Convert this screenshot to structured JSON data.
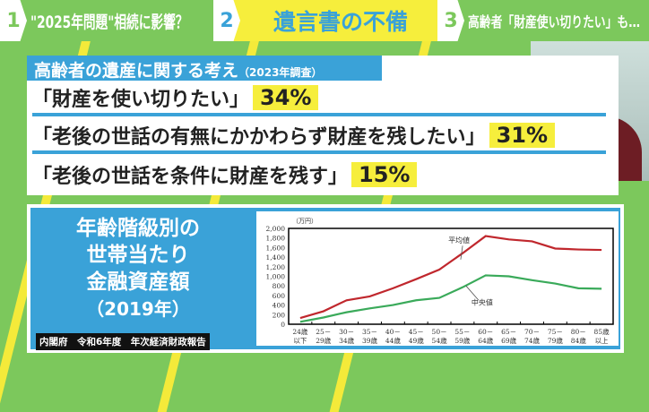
{
  "tabs": [
    {
      "num": "1",
      "label": "\"2025年問題\"相続に影響？"
    },
    {
      "num": "2",
      "label": "遺言書の不備"
    },
    {
      "num": "3",
      "label": "高齢者「財産使い切りたい」も…"
    }
  ],
  "survey": {
    "title": "高齢者の遺産に関する考え",
    "year": "（2023年調査）",
    "items": [
      {
        "text": "「財産を使い切りたい」",
        "pct": "34%"
      },
      {
        "text": "「老後の世話の有無にかかわらず財産を残したい」",
        "pct": "31%"
      },
      {
        "text": "「老後の世話を条件に財産を残す」",
        "pct": "15%"
      }
    ]
  },
  "chart_panel": {
    "title_lines": [
      "年齢階級別の",
      "世帯当たり",
      "金融資産額"
    ],
    "year": "（2019年）",
    "source": "内閣府　令和6年度　年次経済財政報告"
  },
  "colors": {
    "green": "#7cc85c",
    "blue": "#3aa2d8",
    "yellow": "#f6ee3c",
    "mean": "#c0272d",
    "median": "#3aaa5a"
  },
  "chart_data": {
    "type": "line",
    "unit": "（万円）",
    "categories": [
      [
        "24歳",
        "以下"
      ],
      [
        "25－",
        "29歳"
      ],
      [
        "30－",
        "34歳"
      ],
      [
        "35－",
        "39歳"
      ],
      [
        "40－",
        "44歳"
      ],
      [
        "45－",
        "49歳"
      ],
      [
        "50－",
        "54歳"
      ],
      [
        "55－",
        "59歳"
      ],
      [
        "60－",
        "64歳"
      ],
      [
        "65－",
        "69歳"
      ],
      [
        "70－",
        "74歳"
      ],
      [
        "75－",
        "79歳"
      ],
      [
        "80－",
        "84歳"
      ],
      [
        "85歳",
        "以上"
      ]
    ],
    "ylim": [
      0,
      2000
    ],
    "yticks": [
      "0",
      "200",
      "400",
      "600",
      "800",
      "1,000",
      "1,200",
      "1,400",
      "1,600",
      "1,800",
      "2,000"
    ],
    "series": [
      {
        "name": "平均値",
        "color": "#c0272d",
        "values": [
          130,
          270,
          500,
          580,
          750,
          940,
          1140,
          1480,
          1840,
          1770,
          1730,
          1580,
          1560,
          1550
        ]
      },
      {
        "name": "中央値",
        "color": "#3aaa5a",
        "values": [
          50,
          140,
          250,
          330,
          400,
          500,
          550,
          770,
          1020,
          1000,
          920,
          850,
          750,
          740
        ]
      }
    ]
  }
}
